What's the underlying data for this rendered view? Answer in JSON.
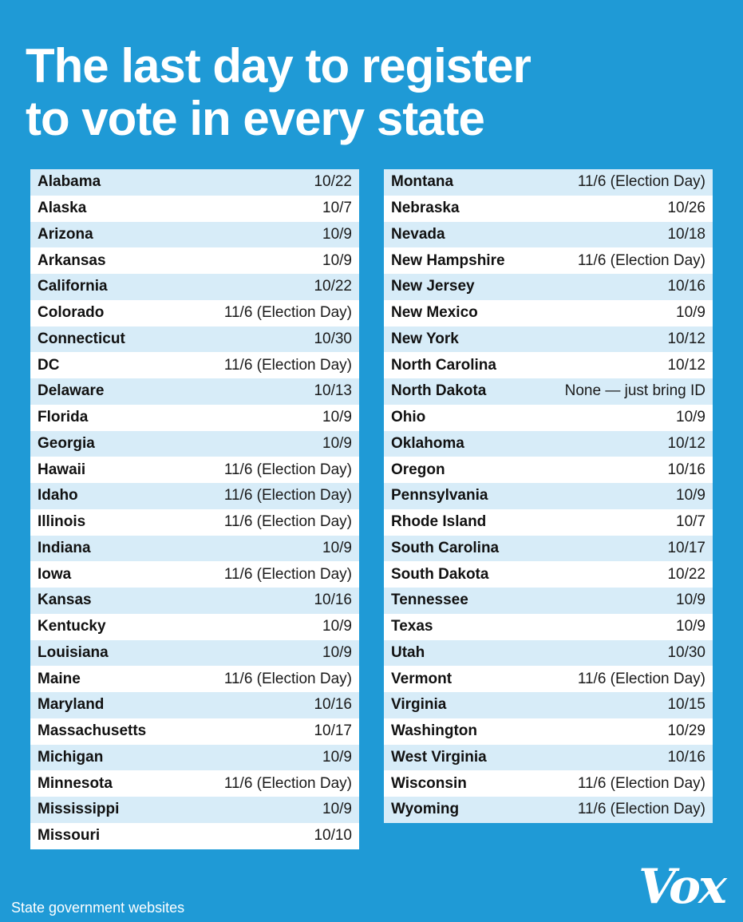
{
  "header": {
    "title_line1": "The last day to register",
    "title_line2": "to vote in every state"
  },
  "left_column": [
    {
      "state": "Alabama",
      "date": "10/22"
    },
    {
      "state": "Alaska",
      "date": "10/7"
    },
    {
      "state": "Arizona",
      "date": "10/9"
    },
    {
      "state": "Arkansas",
      "date": "10/9"
    },
    {
      "state": "California",
      "date": "10/22"
    },
    {
      "state": "Colorado",
      "date": "11/6 (Election Day)"
    },
    {
      "state": "Connecticut",
      "date": "10/30"
    },
    {
      "state": "DC",
      "date": "11/6 (Election Day)"
    },
    {
      "state": "Delaware",
      "date": "10/13"
    },
    {
      "state": "Florida",
      "date": "10/9"
    },
    {
      "state": "Georgia",
      "date": "10/9"
    },
    {
      "state": "Hawaii",
      "date": "11/6 (Election Day)"
    },
    {
      "state": "Idaho",
      "date": "11/6 (Election Day)"
    },
    {
      "state": "Illinois",
      "date": "11/6 (Election Day)"
    },
    {
      "state": "Indiana",
      "date": "10/9"
    },
    {
      "state": "Iowa",
      "date": "11/6 (Election Day)"
    },
    {
      "state": "Kansas",
      "date": "10/16"
    },
    {
      "state": "Kentucky",
      "date": "10/9"
    },
    {
      "state": "Louisiana",
      "date": "10/9"
    },
    {
      "state": "Maine",
      "date": "11/6 (Election Day)"
    },
    {
      "state": "Maryland",
      "date": "10/16"
    },
    {
      "state": "Massachusetts",
      "date": "10/17"
    },
    {
      "state": "Michigan",
      "date": "10/9"
    },
    {
      "state": "Minnesota",
      "date": "11/6 (Election Day)"
    },
    {
      "state": "Mississippi",
      "date": "10/9"
    },
    {
      "state": "Missouri",
      "date": "10/10"
    }
  ],
  "right_column": [
    {
      "state": "Montana",
      "date": "11/6 (Election Day)"
    },
    {
      "state": "Nebraska",
      "date": "10/26"
    },
    {
      "state": "Nevada",
      "date": "10/18"
    },
    {
      "state": "New Hampshire",
      "date": "11/6 (Election Day)"
    },
    {
      "state": "New Jersey",
      "date": "10/16"
    },
    {
      "state": "New Mexico",
      "date": "10/9"
    },
    {
      "state": "New York",
      "date": "10/12"
    },
    {
      "state": "North Carolina",
      "date": "10/12"
    },
    {
      "state": "North Dakota",
      "date": "None — just bring ID"
    },
    {
      "state": "Ohio",
      "date": "10/9"
    },
    {
      "state": "Oklahoma",
      "date": "10/12"
    },
    {
      "state": "Oregon",
      "date": "10/16"
    },
    {
      "state": "Pennsylvania",
      "date": "10/9"
    },
    {
      "state": "Rhode Island",
      "date": "10/7"
    },
    {
      "state": "South Carolina",
      "date": "10/17"
    },
    {
      "state": "South Dakota",
      "date": "10/22"
    },
    {
      "state": "Tennessee",
      "date": "10/9"
    },
    {
      "state": "Texas",
      "date": "10/9"
    },
    {
      "state": "Utah",
      "date": "10/30"
    },
    {
      "state": "Vermont",
      "date": "11/6 (Election Day)"
    },
    {
      "state": "Virginia",
      "date": "10/15"
    },
    {
      "state": "Washington",
      "date": "10/29"
    },
    {
      "state": "West Virginia",
      "date": "10/16"
    },
    {
      "state": "Wisconsin",
      "date": "11/6 (Election Day)"
    },
    {
      "state": "Wyoming",
      "date": "11/6 (Election Day)"
    }
  ],
  "footer": {
    "source": "State government websites",
    "logo": "Vox"
  },
  "colors": {
    "background": "#1f9ad6",
    "row_stripe": "#d7ecf8",
    "row_plain": "#ffffff"
  }
}
